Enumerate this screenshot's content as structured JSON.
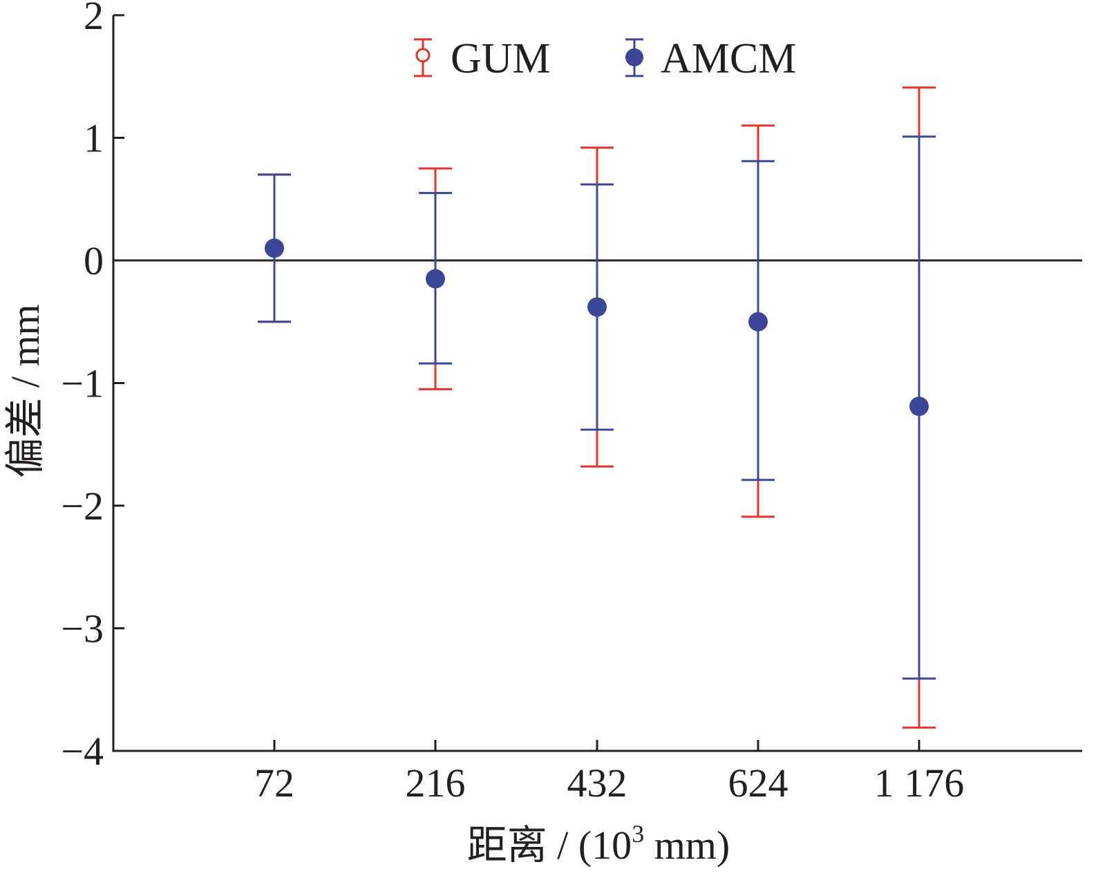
{
  "chart_data": {
    "type": "scatter",
    "title": "",
    "xlabel_prefix": "距离 / (10",
    "xlabel_sup": "3",
    "xlabel_suffix": " mm)",
    "ylabel": "偏差 / mm",
    "categories": [
      "72",
      "216",
      "432",
      "624",
      "1 176"
    ],
    "ylim": [
      -4,
      2
    ],
    "yticks": [
      "2",
      "1",
      "0",
      "−1",
      "−2",
      "−3",
      "−4"
    ],
    "ytick_values": [
      2,
      1,
      0,
      -1,
      -2,
      -3,
      -4
    ],
    "reference_line_y": 0,
    "grid": false,
    "legend_position": "top-center",
    "series": [
      {
        "name": "GUM",
        "color": "#e2342b",
        "marker": "open-circle",
        "values": [
          0.1,
          -0.15,
          -0.38,
          -0.5,
          -1.19
        ],
        "lower": [
          -0.5,
          -1.05,
          -1.68,
          -2.09,
          -3.81
        ],
        "upper": [
          0.7,
          0.75,
          0.92,
          1.1,
          1.41
        ]
      },
      {
        "name": "AMCM",
        "color": "#3b4796",
        "marker": "filled-circle",
        "values": [
          0.1,
          -0.15,
          -0.38,
          -0.5,
          -1.19
        ],
        "lower": [
          -0.5,
          -0.84,
          -1.38,
          -1.79,
          -3.41
        ],
        "upper": [
          0.7,
          0.55,
          0.62,
          0.81,
          1.01
        ]
      }
    ]
  }
}
